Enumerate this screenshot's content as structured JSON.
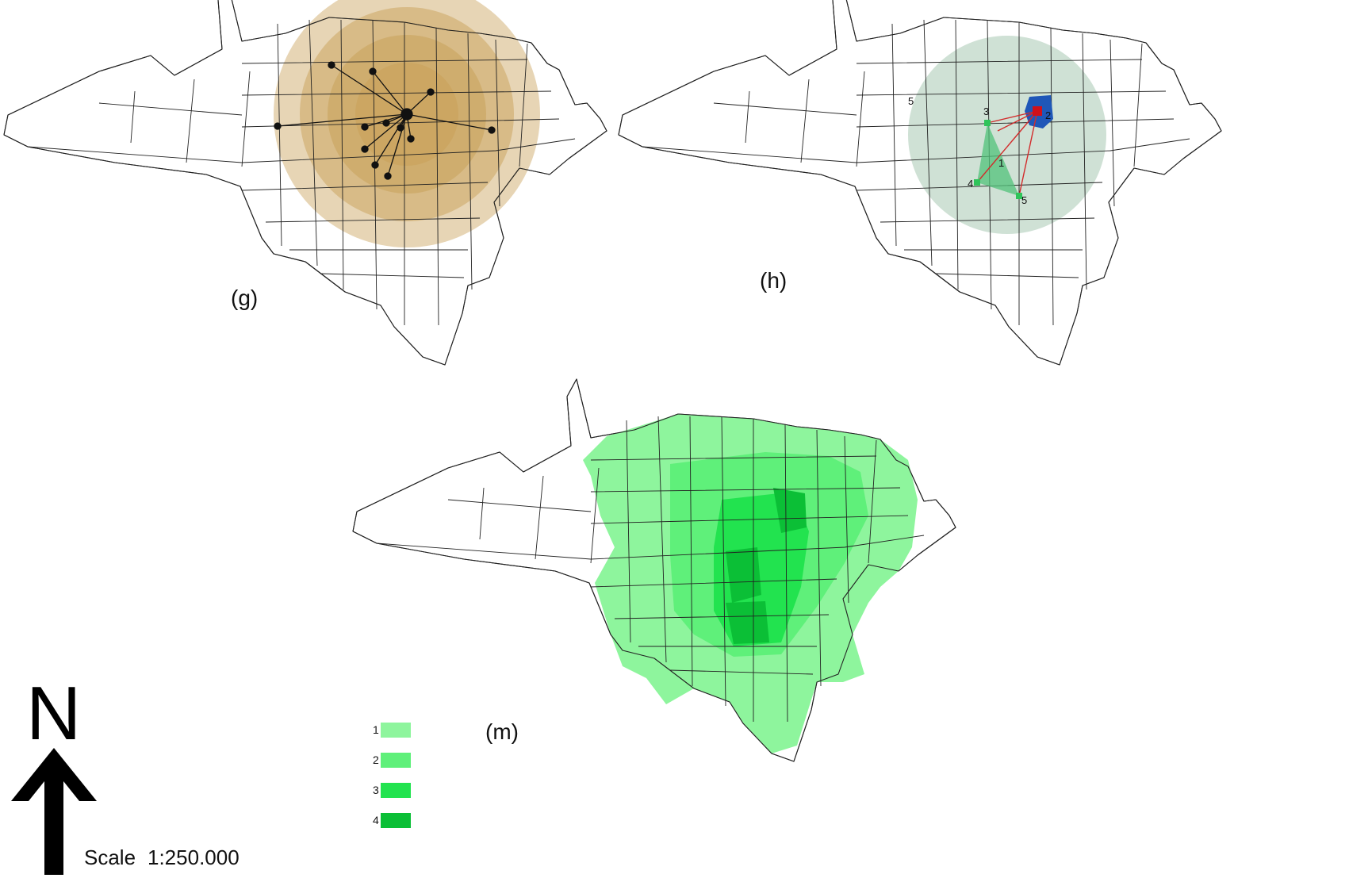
{
  "panels": {
    "g": {
      "label": "(g)"
    },
    "h": {
      "label": "(h)",
      "point_labels": [
        "1",
        "2",
        "3",
        "4",
        "5",
        "5"
      ]
    },
    "m": {
      "label": "(m)",
      "legend": [
        {
          "label": "1",
          "color": "#8ef59d"
        },
        {
          "label": "2",
          "color": "#5ff07a"
        },
        {
          "label": "3",
          "color": "#22e34f"
        },
        {
          "label": "4",
          "color": "#0bbf36"
        }
      ]
    }
  },
  "north_arrow": {
    "letter": "N"
  },
  "scale": {
    "label": "Scale",
    "value": "1:250.000"
  },
  "colors": {
    "buffer_g": "#c9a25a",
    "buffer_h": "#9fc3ac",
    "focus_h": "#1f57b8",
    "triangle_h": "#52c27a",
    "link_h": "#d22b2b"
  }
}
